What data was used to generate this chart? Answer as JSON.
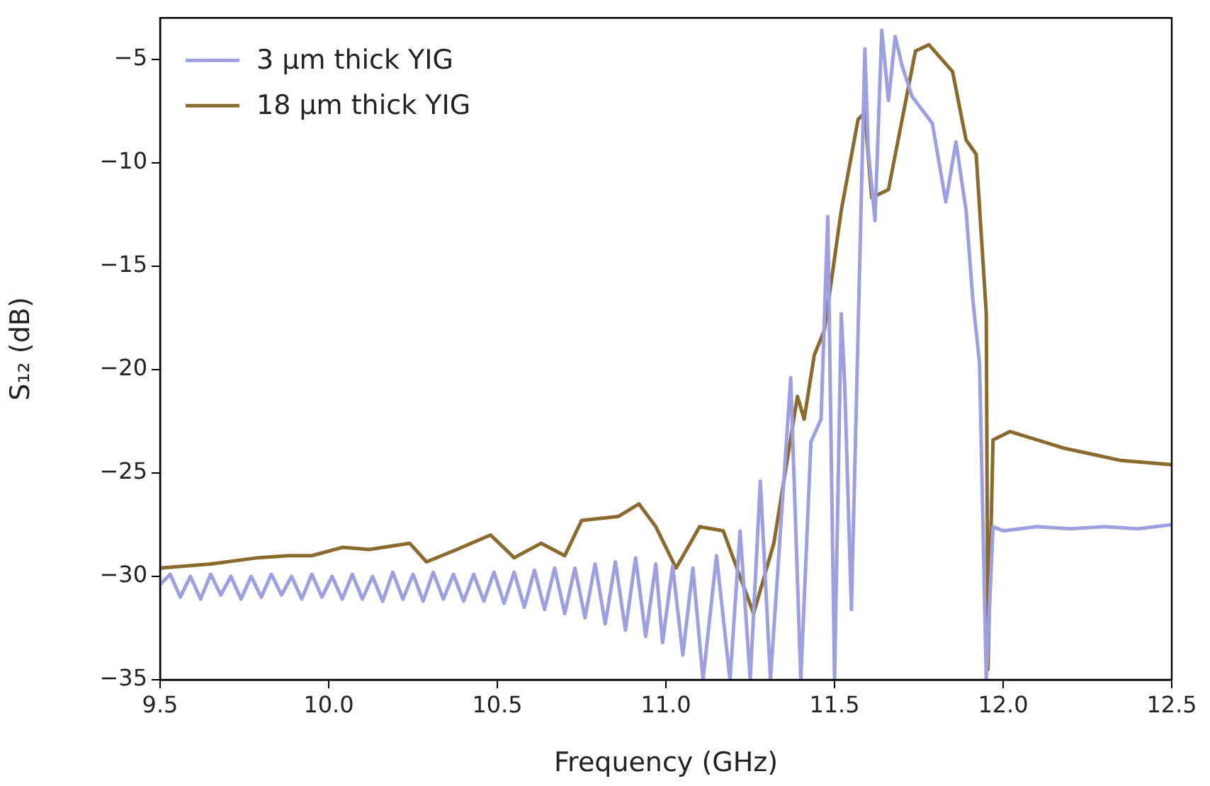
{
  "chart_data": {
    "type": "line",
    "xlabel": "Frequency (GHz)",
    "ylabel": "S₁₂ (dB)",
    "xlim": [
      9.5,
      12.5
    ],
    "ylim": [
      -35,
      -3
    ],
    "xticks": [
      9.5,
      {
        "value": 10,
        "label": "10.0"
      },
      10.5,
      {
        "value": 11,
        "label": "11.0"
      },
      11.5,
      {
        "value": 12,
        "label": "12.0"
      },
      12.5
    ],
    "yticks": [
      -35,
      -30,
      -25,
      -20,
      -15,
      -10,
      -5
    ],
    "legend": "top left",
    "grid": false,
    "marker": "none",
    "line_style": "solid",
    "series": [
      {
        "name": "3 μm thick YIG",
        "color": "#9d9fe0",
        "x": [
          9.5,
          9.53,
          9.56,
          9.59,
          9.62,
          9.65,
          9.68,
          9.71,
          9.74,
          9.77,
          9.8,
          9.83,
          9.86,
          9.89,
          9.92,
          9.95,
          9.98,
          10.01,
          10.04,
          10.07,
          10.1,
          10.13,
          10.16,
          10.19,
          10.22,
          10.25,
          10.28,
          10.31,
          10.34,
          10.37,
          10.4,
          10.43,
          10.46,
          10.49,
          10.52,
          10.55,
          10.58,
          10.61,
          10.64,
          10.67,
          10.7,
          10.73,
          10.76,
          10.79,
          10.82,
          10.85,
          10.88,
          10.91,
          10.94,
          10.97,
          10.99,
          11.02,
          11.05,
          11.08,
          11.11,
          11.15,
          11.19,
          11.22,
          11.25,
          11.28,
          11.31,
          11.37,
          11.4,
          11.43,
          11.46,
          11.48,
          11.5,
          11.52,
          11.53,
          11.55,
          11.59,
          11.6,
          11.62,
          11.64,
          11.66,
          11.68,
          11.7,
          11.73,
          11.79,
          11.83,
          11.86,
          11.89,
          11.91,
          11.93,
          11.95,
          11.97,
          12.0,
          12.1,
          12.2,
          12.3,
          12.4,
          12.5
        ],
        "values": [
          -30.4,
          -29.9,
          -31.0,
          -30.0,
          -31.1,
          -29.9,
          -30.9,
          -30.0,
          -31.1,
          -30.0,
          -31.0,
          -29.9,
          -30.9,
          -30.0,
          -31.1,
          -29.9,
          -31.0,
          -30.0,
          -31.1,
          -29.9,
          -31.1,
          -30.0,
          -31.2,
          -29.8,
          -31.1,
          -29.9,
          -31.2,
          -29.8,
          -31.1,
          -29.9,
          -31.2,
          -29.9,
          -31.2,
          -29.8,
          -31.3,
          -29.8,
          -31.5,
          -29.7,
          -31.6,
          -29.6,
          -31.8,
          -29.6,
          -32.0,
          -29.4,
          -32.3,
          -29.3,
          -32.6,
          -29.1,
          -32.9,
          -29.4,
          -33.2,
          -29.5,
          -33.8,
          -29.6,
          -35,
          -29.0,
          -35,
          -27.8,
          -35,
          -25.4,
          -35,
          -20.4,
          -35,
          -23.5,
          -22.4,
          -12.6,
          -35,
          -17.3,
          -20.6,
          -31.6,
          -4.5,
          -9.4,
          -12.8,
          -3.6,
          -7.0,
          -3.9,
          -5.3,
          -6.8,
          -8.1,
          -11.9,
          -9.0,
          -12.3,
          -16.6,
          -19.7,
          -35,
          -27.6,
          -27.8,
          -27.6,
          -27.7,
          -27.6,
          -27.7,
          -27.5
        ]
      },
      {
        "name": "18 μm thick YIG",
        "color": "#8b6a2e",
        "x": [
          9.5,
          9.65,
          9.79,
          9.88,
          9.95,
          10.04,
          10.12,
          10.24,
          10.29,
          10.38,
          10.48,
          10.55,
          10.63,
          10.7,
          10.75,
          10.86,
          10.92,
          10.97,
          11.03,
          11.1,
          11.17,
          11.26,
          11.32,
          11.39,
          11.41,
          11.44,
          11.47,
          11.52,
          11.57,
          11.59,
          11.61,
          11.66,
          11.74,
          11.78,
          11.85,
          11.89,
          11.92,
          11.95,
          11.955,
          11.97,
          12.02,
          12.18,
          12.35,
          12.5
        ],
        "values": [
          -29.6,
          -29.4,
          -29.1,
          -29.0,
          -29.0,
          -28.6,
          -28.7,
          -28.4,
          -29.3,
          -28.7,
          -28.0,
          -29.1,
          -28.4,
          -29.0,
          -27.3,
          -27.1,
          -26.5,
          -27.6,
          -29.6,
          -27.6,
          -27.8,
          -31.8,
          -28.4,
          -21.3,
          -22.4,
          -19.3,
          -18.1,
          -12.3,
          -7.9,
          -7.6,
          -11.7,
          -11.3,
          -4.6,
          -4.3,
          -5.6,
          -8.9,
          -9.6,
          -17.3,
          -34.5,
          -23.4,
          -23.0,
          -23.8,
          -24.4,
          -24.6
        ]
      }
    ]
  }
}
